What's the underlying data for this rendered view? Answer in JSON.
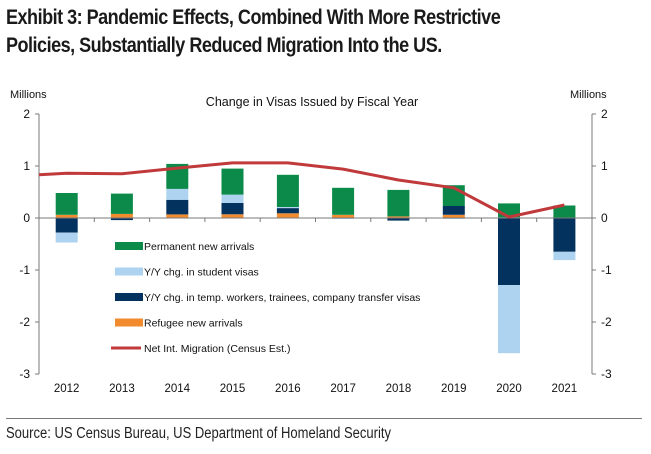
{
  "header": {
    "title_line1": "Exhibit 3: Pandemic Effects, Combined With More Restrictive",
    "title_line2": "Policies, Substantially Reduced Migration Into the US."
  },
  "footer": {
    "source": "Source: US Census Bureau, US Department of Homeland Security"
  },
  "chart_data": {
    "type": "bar",
    "stacked": true,
    "title": "Change in Visas Issued by Fiscal Year",
    "xlabel": "",
    "ylabel_left": "Millions",
    "ylabel_right": "Millions",
    "ylim": [
      -3,
      2
    ],
    "yticks": [
      2,
      1,
      0,
      -1,
      -2,
      -3
    ],
    "ytick_labels": [
      "2",
      "1",
      "0",
      "-1",
      "-2",
      "-3"
    ],
    "grid": false,
    "legend_position": "center-left (inside plot)",
    "categories": [
      "2012",
      "2013",
      "2014",
      "2015",
      "2016",
      "2017",
      "2018",
      "2019",
      "2020",
      "2021"
    ],
    "series": [
      {
        "name": "Permanent new arrivals",
        "kind": "bar",
        "color": "#0b8a4a",
        "values": [
          0.42,
          0.39,
          0.48,
          0.5,
          0.62,
          0.52,
          0.51,
          0.4,
          0.27,
          0.23
        ]
      },
      {
        "name": "Y/Y chg. in student visas",
        "kind": "bar",
        "color": "#aed3f0",
        "values": [
          -0.19,
          0.0,
          0.21,
          0.16,
          0.02,
          -0.02,
          0.0,
          -0.02,
          -1.31,
          -0.16
        ]
      },
      {
        "name": "Y/Y chg. in temp. workers, trainees, company transfer visas",
        "kind": "bar",
        "color": "#04325f",
        "values": [
          -0.28,
          -0.04,
          0.28,
          0.22,
          0.1,
          0.0,
          -0.05,
          0.17,
          -1.29,
          -0.65
        ]
      },
      {
        "name": "Refugee new arrivals",
        "kind": "bar",
        "color": "#f28a2e",
        "values": [
          0.06,
          0.08,
          0.07,
          0.07,
          0.09,
          0.06,
          0.03,
          0.06,
          0.01,
          0.01
        ]
      },
      {
        "name": "Net Int. Migration (Census Est.)",
        "kind": "line",
        "color": "#c0393b",
        "start_value": 0.83,
        "values": [
          0.86,
          0.85,
          0.96,
          1.06,
          1.06,
          0.94,
          0.73,
          0.58,
          0.02,
          0.25
        ]
      }
    ],
    "legend_order": [
      0,
      1,
      2,
      3,
      4
    ]
  }
}
